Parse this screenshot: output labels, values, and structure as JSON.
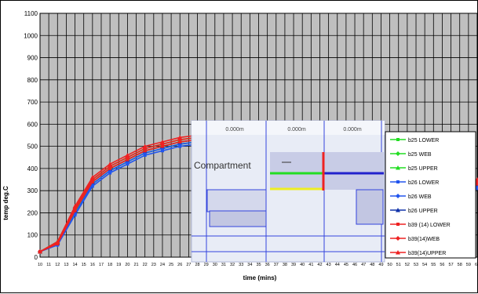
{
  "chart_data": {
    "type": "line",
    "xlabel": "time (mins)",
    "ylabel": "temp deg.C",
    "xlim": [
      10,
      60
    ],
    "ylim": [
      0,
      1100
    ],
    "yticks": [
      0,
      100,
      200,
      300,
      400,
      500,
      600,
      700,
      800,
      900,
      1000,
      1100
    ],
    "xticks": [
      10,
      11,
      12,
      13,
      14,
      15,
      16,
      17,
      18,
      19,
      20,
      21,
      22,
      23,
      24,
      25,
      26,
      27,
      28,
      29,
      30,
      31,
      32,
      33,
      34,
      35,
      36,
      37,
      38,
      39,
      40,
      41,
      42,
      43,
      44,
      45,
      46,
      47,
      48,
      49,
      50,
      51,
      52,
      53,
      54,
      55,
      56,
      57,
      58,
      59,
      60
    ],
    "grid": true,
    "legend_position": "right",
    "series": [
      {
        "name": "b25 LOWER",
        "color": "#22dd22",
        "marker": "square",
        "x": [
          10,
          12,
          14,
          16,
          18,
          20,
          22,
          24,
          26,
          28,
          30,
          32,
          34,
          36,
          38,
          40,
          42,
          44,
          46,
          48,
          50,
          52,
          54,
          56,
          58,
          60
        ],
        "y": [
          25,
          60,
          200,
          330,
          390,
          430,
          470,
          490,
          510,
          520,
          510,
          500,
          490,
          480,
          470,
          450,
          440,
          420,
          400,
          390,
          380,
          370,
          360,
          350,
          340,
          320
        ]
      },
      {
        "name": "b25 WEB",
        "color": "#22dd22",
        "marker": "diamond",
        "x": [
          10,
          12,
          14,
          16,
          18,
          20,
          22,
          24,
          26,
          28,
          30,
          32,
          34,
          36,
          38,
          40,
          42,
          44,
          46,
          48,
          50,
          52,
          54,
          56,
          58,
          60
        ],
        "y": [
          25,
          60,
          200,
          340,
          400,
          440,
          480,
          500,
          520,
          530,
          520,
          510,
          500,
          490,
          480,
          460,
          450,
          430,
          410,
          400,
          390,
          380,
          370,
          355,
          345,
          330
        ]
      },
      {
        "name": "b25 UPPER",
        "color": "#22dd22",
        "marker": "triangle",
        "x": [
          10,
          12,
          14,
          16,
          18,
          20,
          22,
          24,
          26,
          28,
          30,
          32,
          34,
          36,
          38,
          40,
          42,
          44,
          46,
          48,
          50,
          52,
          54,
          56,
          58,
          60
        ],
        "y": [
          25,
          70,
          220,
          350,
          410,
          450,
          490,
          510,
          530,
          540,
          530,
          520,
          510,
          500,
          490,
          470,
          460,
          440,
          420,
          410,
          400,
          390,
          380,
          365,
          355,
          340
        ]
      },
      {
        "name": "b26 LOWER",
        "color": "#2255ee",
        "marker": "square",
        "x": [
          10,
          12,
          14,
          16,
          18,
          20,
          22,
          24,
          26,
          28,
          30,
          32,
          34,
          36,
          38,
          40,
          42,
          44,
          46,
          48,
          50,
          52,
          54,
          56,
          58,
          60
        ],
        "y": [
          25,
          55,
          190,
          320,
          380,
          420,
          460,
          480,
          500,
          510,
          500,
          490,
          480,
          470,
          460,
          440,
          430,
          410,
          390,
          380,
          370,
          360,
          350,
          340,
          330,
          310
        ]
      },
      {
        "name": "b26 WEB",
        "color": "#2255ee",
        "marker": "diamond",
        "x": [
          10,
          12,
          14,
          16,
          18,
          20,
          22,
          24,
          26,
          28,
          30,
          32,
          34,
          36,
          38,
          40,
          42,
          44,
          46,
          48,
          50,
          52,
          54,
          56,
          58,
          60
        ],
        "y": [
          25,
          55,
          195,
          330,
          390,
          430,
          470,
          490,
          510,
          520,
          510,
          500,
          490,
          480,
          470,
          450,
          440,
          420,
          400,
          390,
          380,
          370,
          360,
          345,
          335,
          320
        ]
      },
      {
        "name": "b26 UPPER",
        "color": "#1133aa",
        "marker": "triangle",
        "x": [
          10,
          12,
          14,
          16,
          18,
          20,
          22,
          24,
          26,
          28,
          30,
          32,
          34,
          36,
          38,
          40,
          42,
          44,
          46,
          48,
          50,
          52,
          54,
          56,
          58,
          60
        ],
        "y": [
          25,
          65,
          210,
          340,
          400,
          440,
          480,
          500,
          520,
          530,
          520,
          510,
          500,
          490,
          480,
          460,
          450,
          430,
          410,
          400,
          390,
          380,
          370,
          355,
          345,
          330
        ]
      },
      {
        "name": "b39 (14) LOWER",
        "color": "#ee2222",
        "marker": "square",
        "x": [
          10,
          12,
          14,
          16,
          18,
          20,
          22,
          24,
          26,
          28,
          30,
          32,
          34,
          36,
          38,
          40,
          42,
          44,
          46,
          48,
          50,
          52,
          54,
          56,
          58,
          60
        ],
        "y": [
          25,
          60,
          210,
          340,
          400,
          440,
          480,
          500,
          520,
          530,
          520,
          510,
          500,
          490,
          480,
          460,
          450,
          430,
          410,
          400,
          390,
          380,
          370,
          355,
          345,
          330
        ]
      },
      {
        "name": "b39(14)WEB",
        "color": "#ee2222",
        "marker": "diamond",
        "x": [
          10,
          12,
          14,
          16,
          18,
          20,
          22,
          24,
          26,
          28,
          30,
          32,
          34,
          36,
          38,
          40,
          42,
          44,
          46,
          48,
          50,
          52,
          54,
          56,
          58,
          60
        ],
        "y": [
          25,
          65,
          220,
          350,
          410,
          450,
          490,
          510,
          530,
          540,
          530,
          520,
          510,
          500,
          490,
          470,
          460,
          440,
          420,
          410,
          400,
          390,
          380,
          365,
          355,
          340
        ]
      },
      {
        "name": "b39(14)UPPER",
        "color": "#ee2222",
        "marker": "triangle",
        "x": [
          10,
          12,
          14,
          16,
          18,
          20,
          22,
          24,
          26,
          28,
          30,
          32,
          34,
          36,
          38,
          40,
          42,
          44,
          46,
          48,
          50,
          52,
          54,
          56,
          58,
          60
        ],
        "y": [
          25,
          70,
          230,
          360,
          420,
          460,
          500,
          520,
          540,
          550,
          540,
          530,
          520,
          510,
          500,
          480,
          470,
          450,
          430,
          420,
          410,
          400,
          390,
          375,
          365,
          350
        ]
      }
    ]
  },
  "inset": {
    "labels": [
      "0.000m",
      "0.000m",
      "0.000m"
    ],
    "compartment_label": "Compartment"
  }
}
